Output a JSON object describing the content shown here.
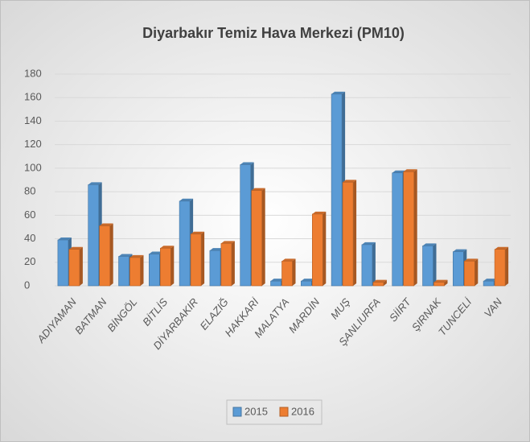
{
  "chart_data": {
    "type": "bar",
    "title": "Diyarbakır Temiz Hava Merkezi (PM10)",
    "categories": [
      "ADIYAMAN",
      "BATMAN",
      "BİNGÖL",
      "BİTLİS",
      "DİYARBAKIR",
      "ELAZIĞ",
      "HAKKARİ",
      "MALATYA",
      "MARDİN",
      "MUŞ",
      "ŞANLIURFA",
      "SİİRT",
      "ŞIRNAK",
      "TUNCELİ",
      "VAN"
    ],
    "series": [
      {
        "name": "2015",
        "color": "#5b9bd5",
        "values": [
          39,
          86,
          25,
          27,
          72,
          30,
          103,
          4,
          4,
          163,
          35,
          96,
          34,
          29,
          4
        ]
      },
      {
        "name": "2016",
        "color": "#ed7d31",
        "values": [
          31,
          51,
          24,
          32,
          44,
          36,
          81,
          21,
          61,
          88,
          3,
          97,
          3,
          21,
          31
        ]
      }
    ],
    "ylim": [
      0,
      180
    ],
    "yticks": [
      0,
      20,
      40,
      60,
      80,
      100,
      120,
      140,
      160,
      180
    ],
    "grid": true,
    "legend": "bottom"
  }
}
